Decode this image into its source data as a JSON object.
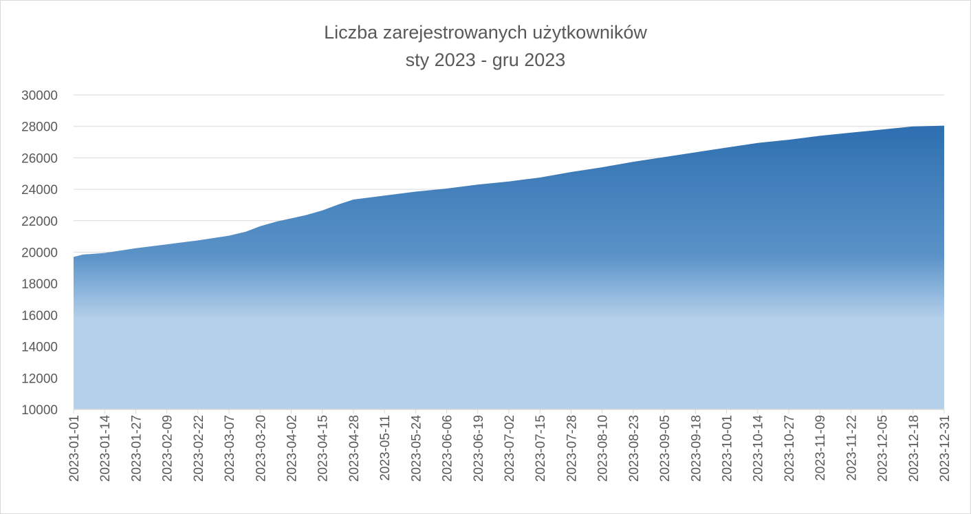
{
  "chart_data": {
    "type": "area",
    "title": "Liczba zarejestrowanych użytkowników",
    "subtitle": "sty 2023 - gru 2023",
    "xlabel": "",
    "ylabel": "",
    "ylim": [
      10000,
      30000
    ],
    "yticks": [
      10000,
      12000,
      14000,
      16000,
      18000,
      20000,
      22000,
      24000,
      26000,
      28000,
      30000
    ],
    "xlim": [
      "2023-01-01",
      "2023-12-31"
    ],
    "xticks": [
      "2023-01-01",
      "2023-01-14",
      "2023-01-27",
      "2023-02-09",
      "2023-02-22",
      "2023-03-07",
      "2023-03-20",
      "2023-04-02",
      "2023-04-15",
      "2023-04-28",
      "2023-05-11",
      "2023-05-24",
      "2023-06-06",
      "2023-06-19",
      "2023-07-02",
      "2023-07-15",
      "2023-07-28",
      "2023-08-10",
      "2023-08-23",
      "2023-09-05",
      "2023-09-18",
      "2023-10-01",
      "2023-10-14",
      "2023-10-27",
      "2023-11-09",
      "2023-11-22",
      "2023-12-05",
      "2023-12-18",
      "2023-12-31"
    ],
    "grid": true,
    "legend": "none",
    "colors": {
      "top": "#2e6fb0",
      "mid": "#5b93c8",
      "bottom": "#b4d0ea",
      "grid": "#d9d9d9"
    },
    "series": [
      {
        "x": [
          "2023-01-01",
          "2023-01-05",
          "2023-01-14",
          "2023-01-27",
          "2023-02-09",
          "2023-02-22",
          "2023-03-07",
          "2023-03-14",
          "2023-03-20",
          "2023-03-27",
          "2023-04-02",
          "2023-04-08",
          "2023-04-15",
          "2023-04-22",
          "2023-04-28",
          "2023-05-11",
          "2023-05-24",
          "2023-06-06",
          "2023-06-19",
          "2023-07-02",
          "2023-07-15",
          "2023-07-28",
          "2023-08-10",
          "2023-08-23",
          "2023-09-05",
          "2023-09-18",
          "2023-10-01",
          "2023-10-14",
          "2023-10-27",
          "2023-11-09",
          "2023-11-22",
          "2023-12-05",
          "2023-12-18",
          "2023-12-31"
        ],
        "values": [
          19700,
          19850,
          19950,
          20250,
          20500,
          20750,
          21050,
          21300,
          21650,
          21950,
          22150,
          22350,
          22650,
          23050,
          23350,
          23600,
          23850,
          24050,
          24300,
          24500,
          24750,
          25100,
          25400,
          25750,
          26050,
          26350,
          26650,
          26950,
          27150,
          27400,
          27600,
          27800,
          28000,
          28050
        ]
      }
    ]
  }
}
